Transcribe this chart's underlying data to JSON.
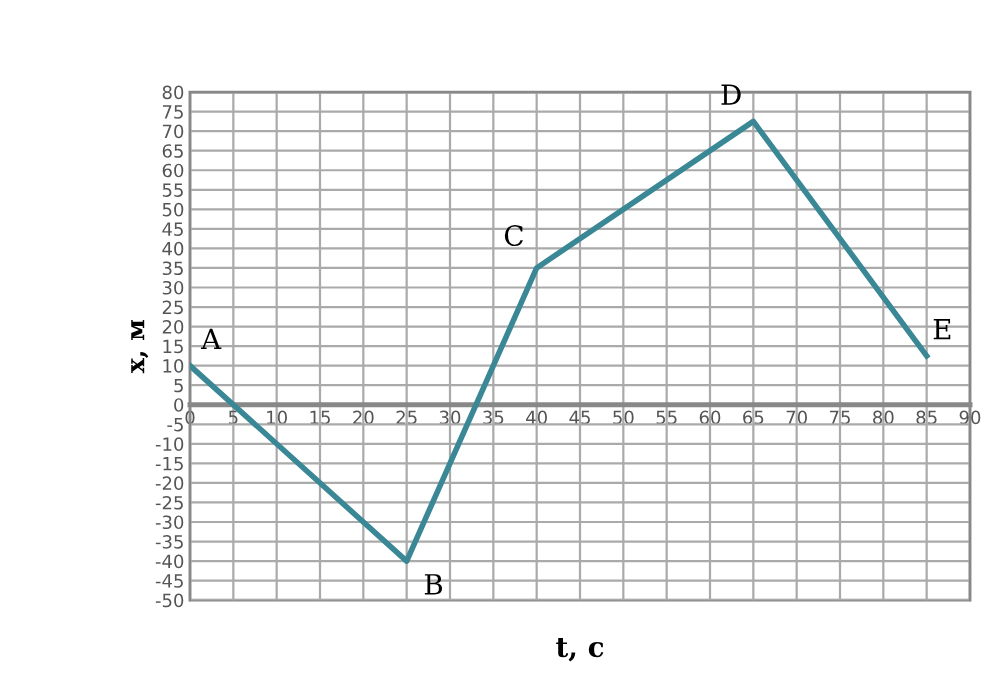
{
  "chart_data": {
    "type": "line",
    "xlabel": "t, c",
    "ylabel": "x, м",
    "x": [
      0,
      25,
      40,
      65,
      85
    ],
    "series": [
      {
        "color": "#3a8796",
        "values": [
          10,
          -40,
          35,
          72.5,
          12.5
        ]
      }
    ],
    "xlim": [
      0,
      90
    ],
    "xticks": [
      0,
      5,
      10,
      15,
      20,
      25,
      30,
      35,
      40,
      45,
      50,
      55,
      60,
      65,
      70,
      75,
      80,
      85,
      90
    ],
    "ylim": [
      -50,
      80
    ],
    "yticks": [
      -50,
      -45,
      -40,
      -35,
      -30,
      -25,
      -20,
      -15,
      -10,
      -5,
      0,
      5,
      10,
      15,
      20,
      25,
      30,
      35,
      40,
      45,
      50,
      55,
      60,
      65,
      70,
      75,
      80
    ],
    "grid": true,
    "marker": "none",
    "line_style": "solid",
    "annotations": [
      {
        "text": "A",
        "x": 0,
        "y": 10
      },
      {
        "text": "B",
        "x": 25,
        "y": -40
      },
      {
        "text": "C",
        "x": 40,
        "y": 35
      },
      {
        "text": "D",
        "x": 65,
        "y": 72.5
      },
      {
        "text": "E",
        "x": 85,
        "y": 12.5
      }
    ]
  }
}
